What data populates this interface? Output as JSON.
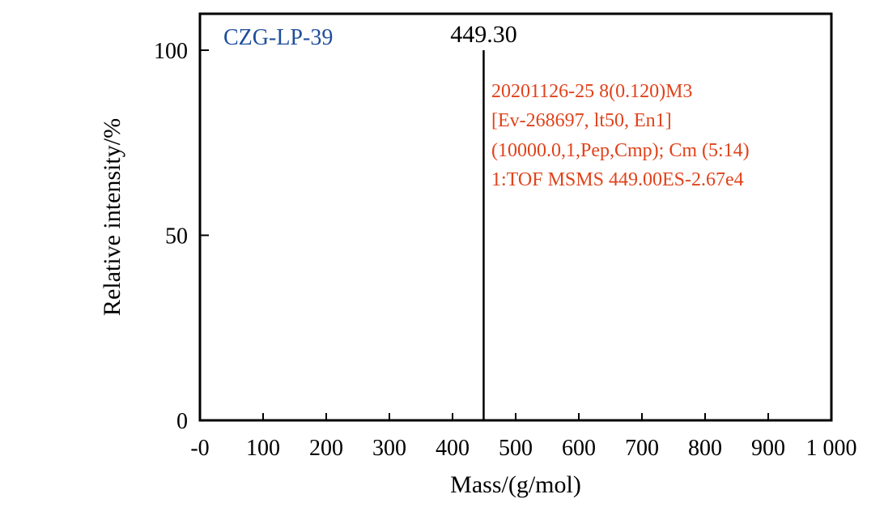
{
  "chart_data": {
    "type": "bar",
    "sample_label": "CZG-LP-39",
    "xlabel": "Mass/(g/mol)",
    "ylabel": "Relative intensity/%",
    "xlim": [
      0,
      1000
    ],
    "ylim": [
      0,
      110
    ],
    "x_ticks": [
      0,
      100,
      200,
      300,
      400,
      500,
      600,
      700,
      800,
      900,
      1000
    ],
    "x_tick_labels": [
      "-0",
      "100",
      "200",
      "300",
      "400",
      "500",
      "600",
      "700",
      "800",
      "900",
      "1 000"
    ],
    "y_ticks": [
      0,
      50,
      100
    ],
    "y_tick_labels": [
      "0",
      "50",
      "100"
    ],
    "peaks": [
      {
        "x": 449.3,
        "y": 100,
        "label": "449.30"
      }
    ],
    "info_lines": [
      "20201126-25 8(0.120)M3",
      "[Ev-268697, lt50, En1]",
      "(10000.0,1,Pep,Cmp); Cm (5:14)",
      "1:TOF MSMS 449.00ES-2.67e4"
    ],
    "grid": false
  },
  "colors": {
    "sample_label": "#1f4e9c",
    "info_text": "#e0421b",
    "axis": "#000000"
  }
}
